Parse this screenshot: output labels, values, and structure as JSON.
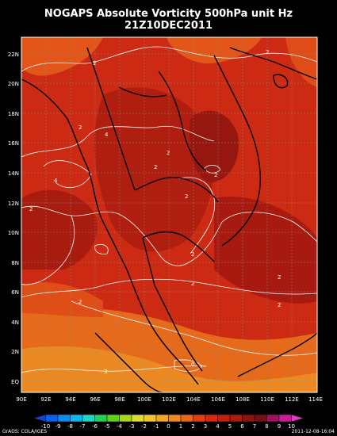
{
  "title": {
    "line1": "NOGAPS Absolute Vorticity 500hPa unit Hz",
    "line2": "21Z10DEC2011"
  },
  "axes": {
    "lon_labels": [
      "90E",
      "92E",
      "94E",
      "96E",
      "98E",
      "100E",
      "102E",
      "104E",
      "106E",
      "108E",
      "110E",
      "112E",
      "114E"
    ],
    "lat_labels": [
      "22N",
      "20N",
      "18N",
      "16N",
      "14N",
      "12N",
      "10N",
      "8N",
      "6N",
      "4N",
      "2N",
      "EQ"
    ]
  },
  "contour_labels": [
    "2",
    "2",
    "2",
    "4",
    "4",
    "2",
    "2",
    "2",
    "2",
    "2",
    "2",
    "2",
    "2",
    "2",
    "2",
    "0",
    "3"
  ],
  "colorbar": {
    "labels": [
      "-10",
      "-9",
      "-8",
      "-7",
      "-6",
      "-5",
      "-4",
      "-3",
      "-2",
      "-1",
      "0",
      "1",
      "2",
      "3",
      "4",
      "5",
      "6",
      "7",
      "8",
      "9",
      "10"
    ],
    "colors": [
      "#1d3ed6",
      "#0a62e8",
      "#0a8ef0",
      "#12b5ee",
      "#1ed6c8",
      "#22d05a",
      "#5ed215",
      "#a9d81b",
      "#dcdc2a",
      "#f0c82e",
      "#f0a828",
      "#ee8a1e",
      "#e8651a",
      "#e43e14",
      "#d62a10",
      "#c4200e",
      "#ad1a0e",
      "#8c1410",
      "#74101c",
      "#a0125e",
      "#cc1c9a",
      "#e23cc2"
    ]
  },
  "footer": {
    "left": "GrADS: COLA/IGES",
    "right": "2011-12-08-16:04"
  }
}
